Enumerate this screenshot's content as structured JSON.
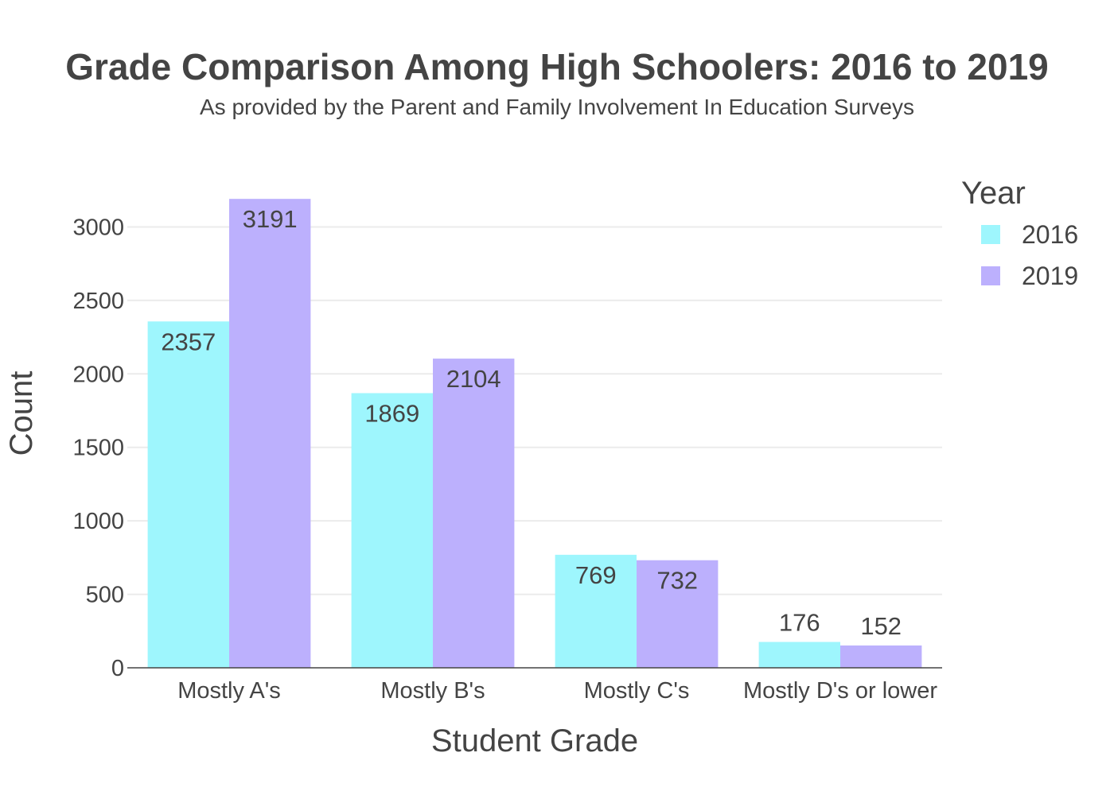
{
  "chart_data": {
    "type": "bar",
    "title": "Grade Comparison Among High Schoolers: 2016 to 2019",
    "subtitle": "As provided by the Parent and Family Involvement In Education Surveys",
    "xlabel": "Student Grade",
    "ylabel": "Count",
    "ylim": [
      0,
      3300
    ],
    "yticks": [
      0,
      500,
      1000,
      1500,
      2000,
      2500,
      3000
    ],
    "grid": true,
    "legend_title": "Year",
    "legend_position": "top-right",
    "categories": [
      "Mostly A's",
      "Mostly B's",
      "Mostly C's",
      "Mostly D's or lower"
    ],
    "series": [
      {
        "name": "2016",
        "color": "#9ef6fd",
        "values": [
          2357,
          1869,
          769,
          176
        ]
      },
      {
        "name": "2019",
        "color": "#bcb0fd",
        "values": [
          3191,
          2104,
          732,
          152
        ]
      }
    ]
  }
}
